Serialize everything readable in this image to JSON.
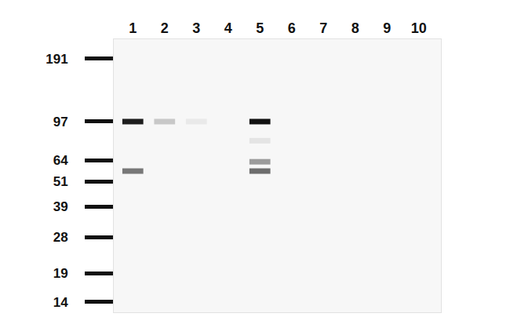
{
  "chart_data": {
    "type": "blot",
    "xticks": [
      1,
      2,
      3,
      4,
      5,
      6,
      7,
      8,
      9,
      10
    ],
    "xlim": [
      0.4,
      10.7
    ],
    "yticks": [
      14,
      19,
      28,
      39,
      51,
      64,
      97,
      191
    ],
    "ylim": [
      12.5,
      235
    ],
    "log": "y",
    "grid": false,
    "color": "#111111",
    "bands": [
      {
        "lane": 1,
        "mw": 97,
        "intensity": 0.95
      },
      {
        "lane": 1,
        "mw": 57,
        "intensity": 0.55
      },
      {
        "lane": 2,
        "mw": 97,
        "intensity": 0.2
      },
      {
        "lane": 3,
        "mw": 97,
        "intensity": 0.06
      },
      {
        "lane": 5,
        "mw": 97,
        "intensity": 1
      },
      {
        "lane": 5,
        "mw": 79,
        "intensity": 0.08
      },
      {
        "lane": 5,
        "mw": 63,
        "intensity": 0.4
      },
      {
        "lane": 5,
        "mw": 57,
        "intensity": 0.6
      }
    ]
  }
}
